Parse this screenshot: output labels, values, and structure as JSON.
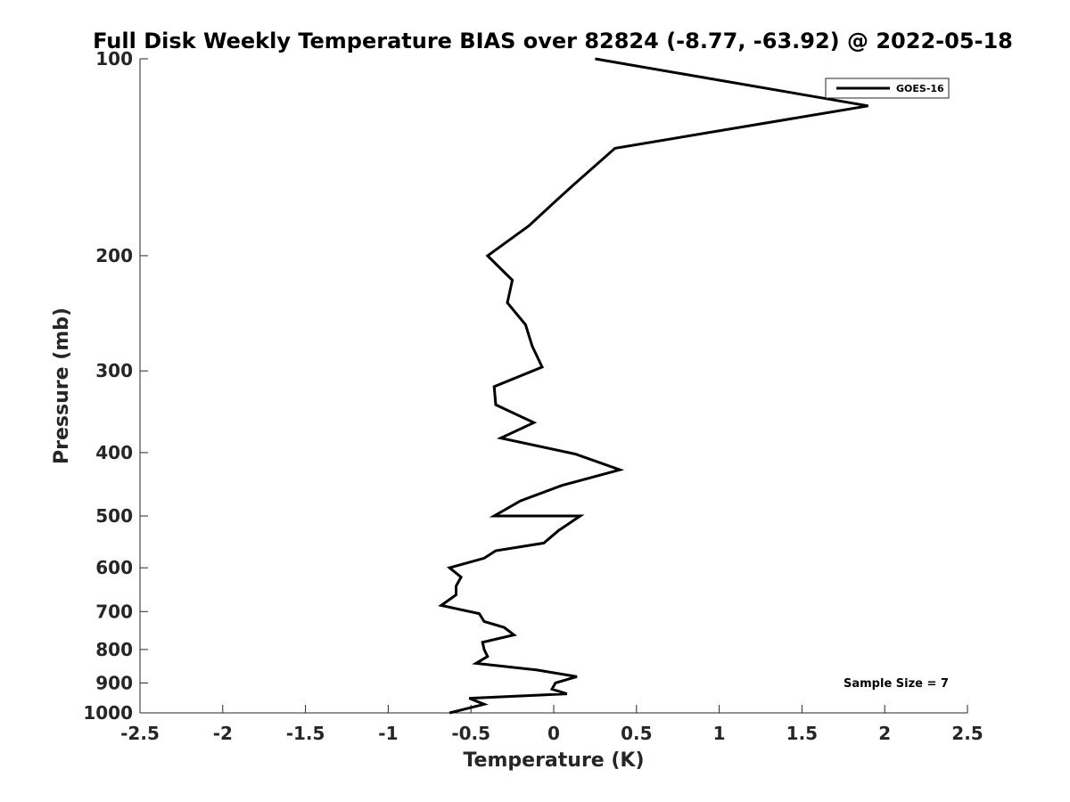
{
  "chart_data": {
    "type": "line",
    "title": "Full Disk Weekly Temperature BIAS over 82824 (-8.77, -63.92) @ 2022-05-18",
    "xlabel": "Temperature (K)",
    "ylabel": "Pressure (mb)",
    "xlim": [
      -2.5,
      2.5
    ],
    "ylim": [
      1000,
      100
    ],
    "y_scale": "log",
    "y_reversed": true,
    "x_ticks": [
      "-2.5",
      "-2",
      "-1.5",
      "-1",
      "-0.5",
      "0",
      "0.5",
      "1",
      "1.5",
      "2",
      "2.5"
    ],
    "y_ticks": [
      "100",
      "200",
      "300",
      "400",
      "500",
      "600",
      "700",
      "800",
      "900",
      "1000"
    ],
    "grid": false,
    "legend_position": "top-right",
    "annotation": "Sample Size = 7",
    "series": [
      {
        "name": "GOES-16",
        "color": "#000000",
        "points": [
          [
            0.25,
            100
          ],
          [
            1.9,
            118
          ],
          [
            0.37,
            137
          ],
          [
            0.13,
            155
          ],
          [
            0.0,
            166
          ],
          [
            -0.15,
            180
          ],
          [
            -0.4,
            200
          ],
          [
            -0.25,
            218
          ],
          [
            -0.28,
            236
          ],
          [
            -0.17,
            255
          ],
          [
            -0.13,
            275
          ],
          [
            -0.07,
            296
          ],
          [
            -0.36,
            317
          ],
          [
            -0.35,
            338
          ],
          [
            -0.12,
            360
          ],
          [
            -0.32,
            380
          ],
          [
            0.13,
            402
          ],
          [
            0.4,
            425
          ],
          [
            0.05,
            449
          ],
          [
            -0.2,
            474
          ],
          [
            -0.36,
            500
          ],
          [
            0.16,
            500
          ],
          [
            0.03,
            526
          ],
          [
            -0.06,
            550
          ],
          [
            -0.35,
            565
          ],
          [
            -0.42,
            580
          ],
          [
            -0.63,
            600
          ],
          [
            -0.56,
            620
          ],
          [
            -0.59,
            640
          ],
          [
            -0.59,
            660
          ],
          [
            -0.68,
            685
          ],
          [
            -0.45,
            705
          ],
          [
            -0.42,
            725
          ],
          [
            -0.3,
            740
          ],
          [
            -0.24,
            760
          ],
          [
            -0.43,
            780
          ],
          [
            -0.42,
            800
          ],
          [
            -0.4,
            820
          ],
          [
            -0.47,
            840
          ],
          [
            -0.1,
            860
          ],
          [
            0.14,
            880
          ],
          [
            0.01,
            900
          ],
          [
            -0.01,
            920
          ],
          [
            0.08,
            935
          ],
          [
            -0.51,
            950
          ],
          [
            -0.42,
            970
          ],
          [
            -0.63,
            1000
          ]
        ]
      }
    ]
  }
}
